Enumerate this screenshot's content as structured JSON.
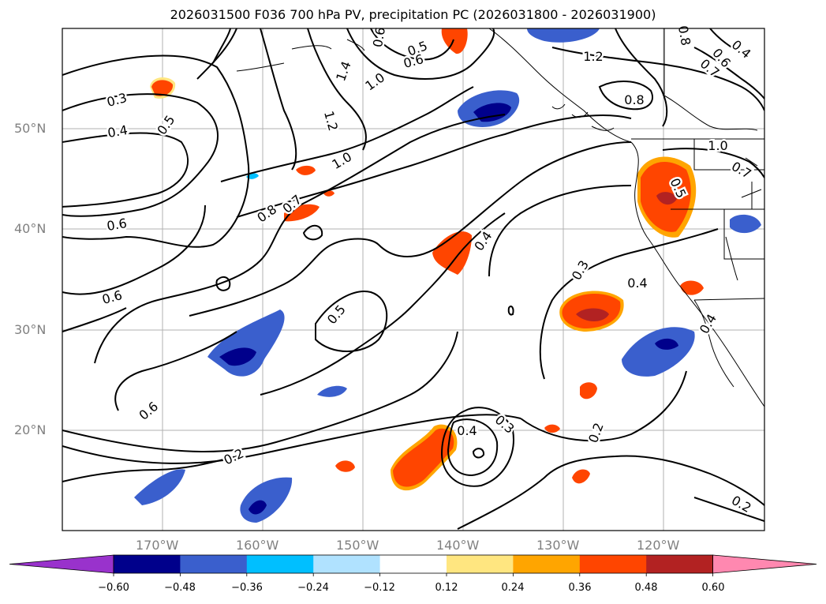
{
  "title": "2026031500 F036 700 hPa PV, precipitation PC (2026031800 - 2026031900)",
  "lat_labels": [
    "50°N",
    "40°N",
    "30°N",
    "20°N"
  ],
  "lon_labels": [
    "170°W",
    "160°W",
    "150°W",
    "140°W",
    "130°W",
    "120°W"
  ],
  "contour_labels": [
    "0.3",
    "0.4",
    "0.5",
    "0.6",
    "0.6",
    "0.6",
    "0.8",
    "0.7",
    "1.0",
    "1.4",
    "1.0",
    "1.2",
    "0.5",
    "0.6",
    "0.5",
    "0.4",
    "0.3",
    "0.4",
    "0.3",
    "0.2",
    "0.2",
    "0.2",
    "0.4",
    "0.8",
    "1.2",
    "1.0",
    "0.7",
    "0.5",
    "0.6",
    "0.4",
    "0.8",
    "0.6",
    "0.7",
    "0.4"
  ],
  "colorbar": {
    "ticks": [
      "−0.60",
      "−0.48",
      "−0.36",
      "−0.24",
      "−0.12",
      "0.12",
      "0.24",
      "0.36",
      "0.48",
      "0.60"
    ],
    "colors": [
      "#9932cc",
      "#00008b",
      "#3a5fcd",
      "#00bfff",
      "#b0e2ff",
      "#ffffff",
      "#ffe680",
      "#ffa500",
      "#ff4500",
      "#b22222",
      "#ff88b0"
    ]
  }
}
